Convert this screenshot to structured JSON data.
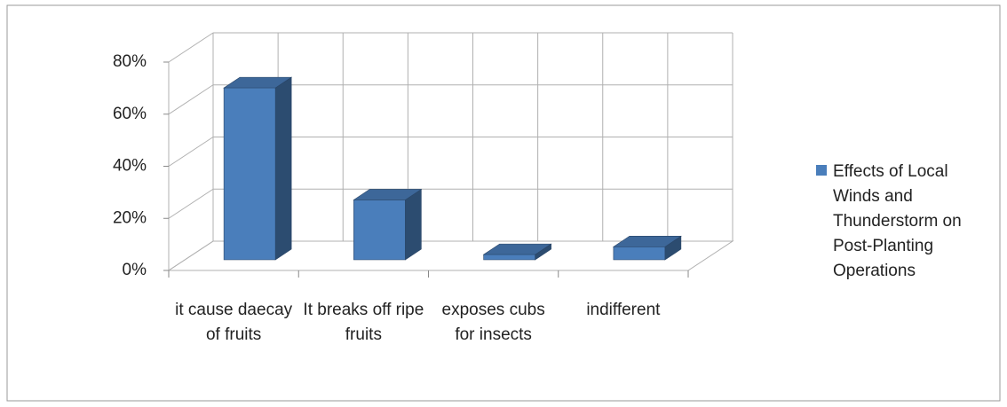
{
  "chart_data": {
    "type": "bar3d",
    "categories": [
      "it cause daecay of fruits",
      "It breaks off ripe fruits",
      "exposes cubs for insects",
      "indifferent"
    ],
    "series": [
      {
        "name": "Effects of Local Winds and Thunderstorm on Post-Planting Operations",
        "color": "#4a7ebb",
        "values": [
          66,
          23,
          2,
          5
        ]
      }
    ],
    "ylim": [
      0,
      80
    ],
    "yticks": [
      {
        "value": 0,
        "label": "0%"
      },
      {
        "value": 20,
        "label": "20%"
      },
      {
        "value": 40,
        "label": "40%"
      },
      {
        "value": 60,
        "label": "60%"
      },
      {
        "value": 80,
        "label": "80%"
      }
    ],
    "grid": true,
    "legend": "right"
  }
}
